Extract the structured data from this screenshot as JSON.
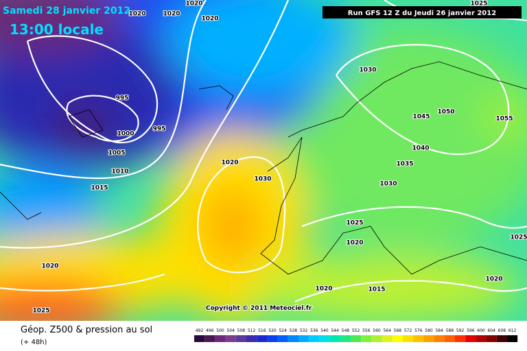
{
  "header": {
    "date": "Samedi 28 janvier 2012",
    "time": "13:00 locale",
    "run": "Run GFS 12 Z du Jeudi 26 janvier 2012"
  },
  "copyright": "Copyright © 2011 Meteociel.fr",
  "footer": {
    "title": "Géop. Z500 & pression au sol",
    "lead": "(+ 48h)"
  },
  "isobars": [
    1020,
    1020,
    1020,
    1020,
    1025,
    1030,
    995,
    995,
    1000,
    1005,
    1010,
    1015,
    1020,
    1030,
    1045,
    1050,
    1055,
    1040,
    1035,
    1030,
    1025,
    1020,
    1025,
    1020,
    1015,
    1020,
    1020,
    1025
  ],
  "scale": {
    "labels": [
      492,
      496,
      500,
      504,
      508,
      512,
      516,
      520,
      524,
      528,
      532,
      536,
      540,
      544,
      548,
      552,
      556,
      560,
      564,
      568,
      572,
      576,
      580,
      584,
      588,
      592,
      596,
      600,
      604,
      608,
      612
    ],
    "colors": [
      "#2a0a3a",
      "#4a1858",
      "#6a2a78",
      "#7a3c8c",
      "#5a3a9a",
      "#3a2ab0",
      "#1a2ad0",
      "#0a40f0",
      "#0060ff",
      "#0088ff",
      "#00aaff",
      "#00ccff",
      "#00e0e8",
      "#00e8b0",
      "#20e880",
      "#50e850",
      "#80f040",
      "#b0f030",
      "#e0f020",
      "#ffff00",
      "#ffe000",
      "#ffc000",
      "#ffa000",
      "#ff8000",
      "#ff6000",
      "#ff3000",
      "#e00000",
      "#b00000",
      "#800000",
      "#400000",
      "#000000"
    ]
  }
}
